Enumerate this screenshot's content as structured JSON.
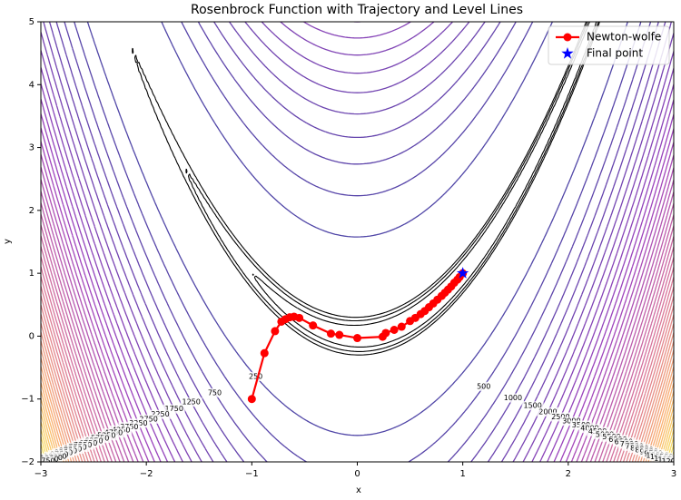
{
  "chart_data": {
    "type": "contour",
    "title": "Rosenbrock Function with Trajectory and Level Lines",
    "x_label": "x",
    "y_label": "y",
    "xlim": [
      -3,
      3
    ],
    "ylim": [
      -2,
      5
    ],
    "xticks": [
      {
        "value": -3,
        "label": "−3"
      },
      {
        "value": -2,
        "label": "−2"
      },
      {
        "value": -1,
        "label": "−1"
      },
      0,
      1,
      2,
      3
    ],
    "yticks": [
      {
        "value": -2,
        "label": "−2"
      },
      {
        "value": -1,
        "label": "−1"
      },
      0,
      1,
      2,
      3,
      4,
      5
    ],
    "colormap": "plasma",
    "levels": [
      250,
      500,
      750,
      1000,
      1250,
      1500,
      1750,
      2000,
      2250,
      2500,
      2750,
      3000,
      3250,
      3500,
      3750,
      4000,
      4250,
      4500,
      4750,
      5000,
      5250,
      5500,
      5750,
      6000,
      6250,
      6500,
      6750,
      7000,
      7250,
      7500,
      7750,
      8000,
      8250,
      8500,
      8750,
      9000,
      9250,
      9500,
      9750,
      10000,
      10250,
      10500,
      10750,
      11000,
      11250,
      11500,
      11750,
      12000
    ],
    "black_levels": [
      4,
      7,
      10
    ],
    "legend": "upper right",
    "series": [
      {
        "name": "Newton-wolfe",
        "color": "#ff0000",
        "x": [
          -1,
          -0.88,
          -0.78,
          -0.72,
          -0.68,
          -0.64,
          -0.6,
          -0.55,
          -0.42,
          -0.25,
          -0.17,
          0,
          0.24,
          0.27,
          0.35,
          0.42,
          0.5,
          0.55,
          0.6,
          0.64,
          0.68,
          0.72,
          0.76,
          0.8,
          0.83,
          0.86,
          0.89,
          0.92,
          0.95,
          0.97,
          1.0
        ],
        "y": [
          -1,
          -0.27,
          0.08,
          0.23,
          0.27,
          0.3,
          0.31,
          0.29,
          0.17,
          0.04,
          0.02,
          -0.03,
          -0.01,
          0.05,
          0.1,
          0.15,
          0.24,
          0.29,
          0.35,
          0.4,
          0.46,
          0.52,
          0.58,
          0.64,
          0.69,
          0.74,
          0.79,
          0.85,
          0.9,
          0.94,
          1.0
        ]
      }
    ],
    "final_point": {
      "name": "Final point",
      "color": "#0000ff",
      "x": 1,
      "y": 1
    }
  }
}
